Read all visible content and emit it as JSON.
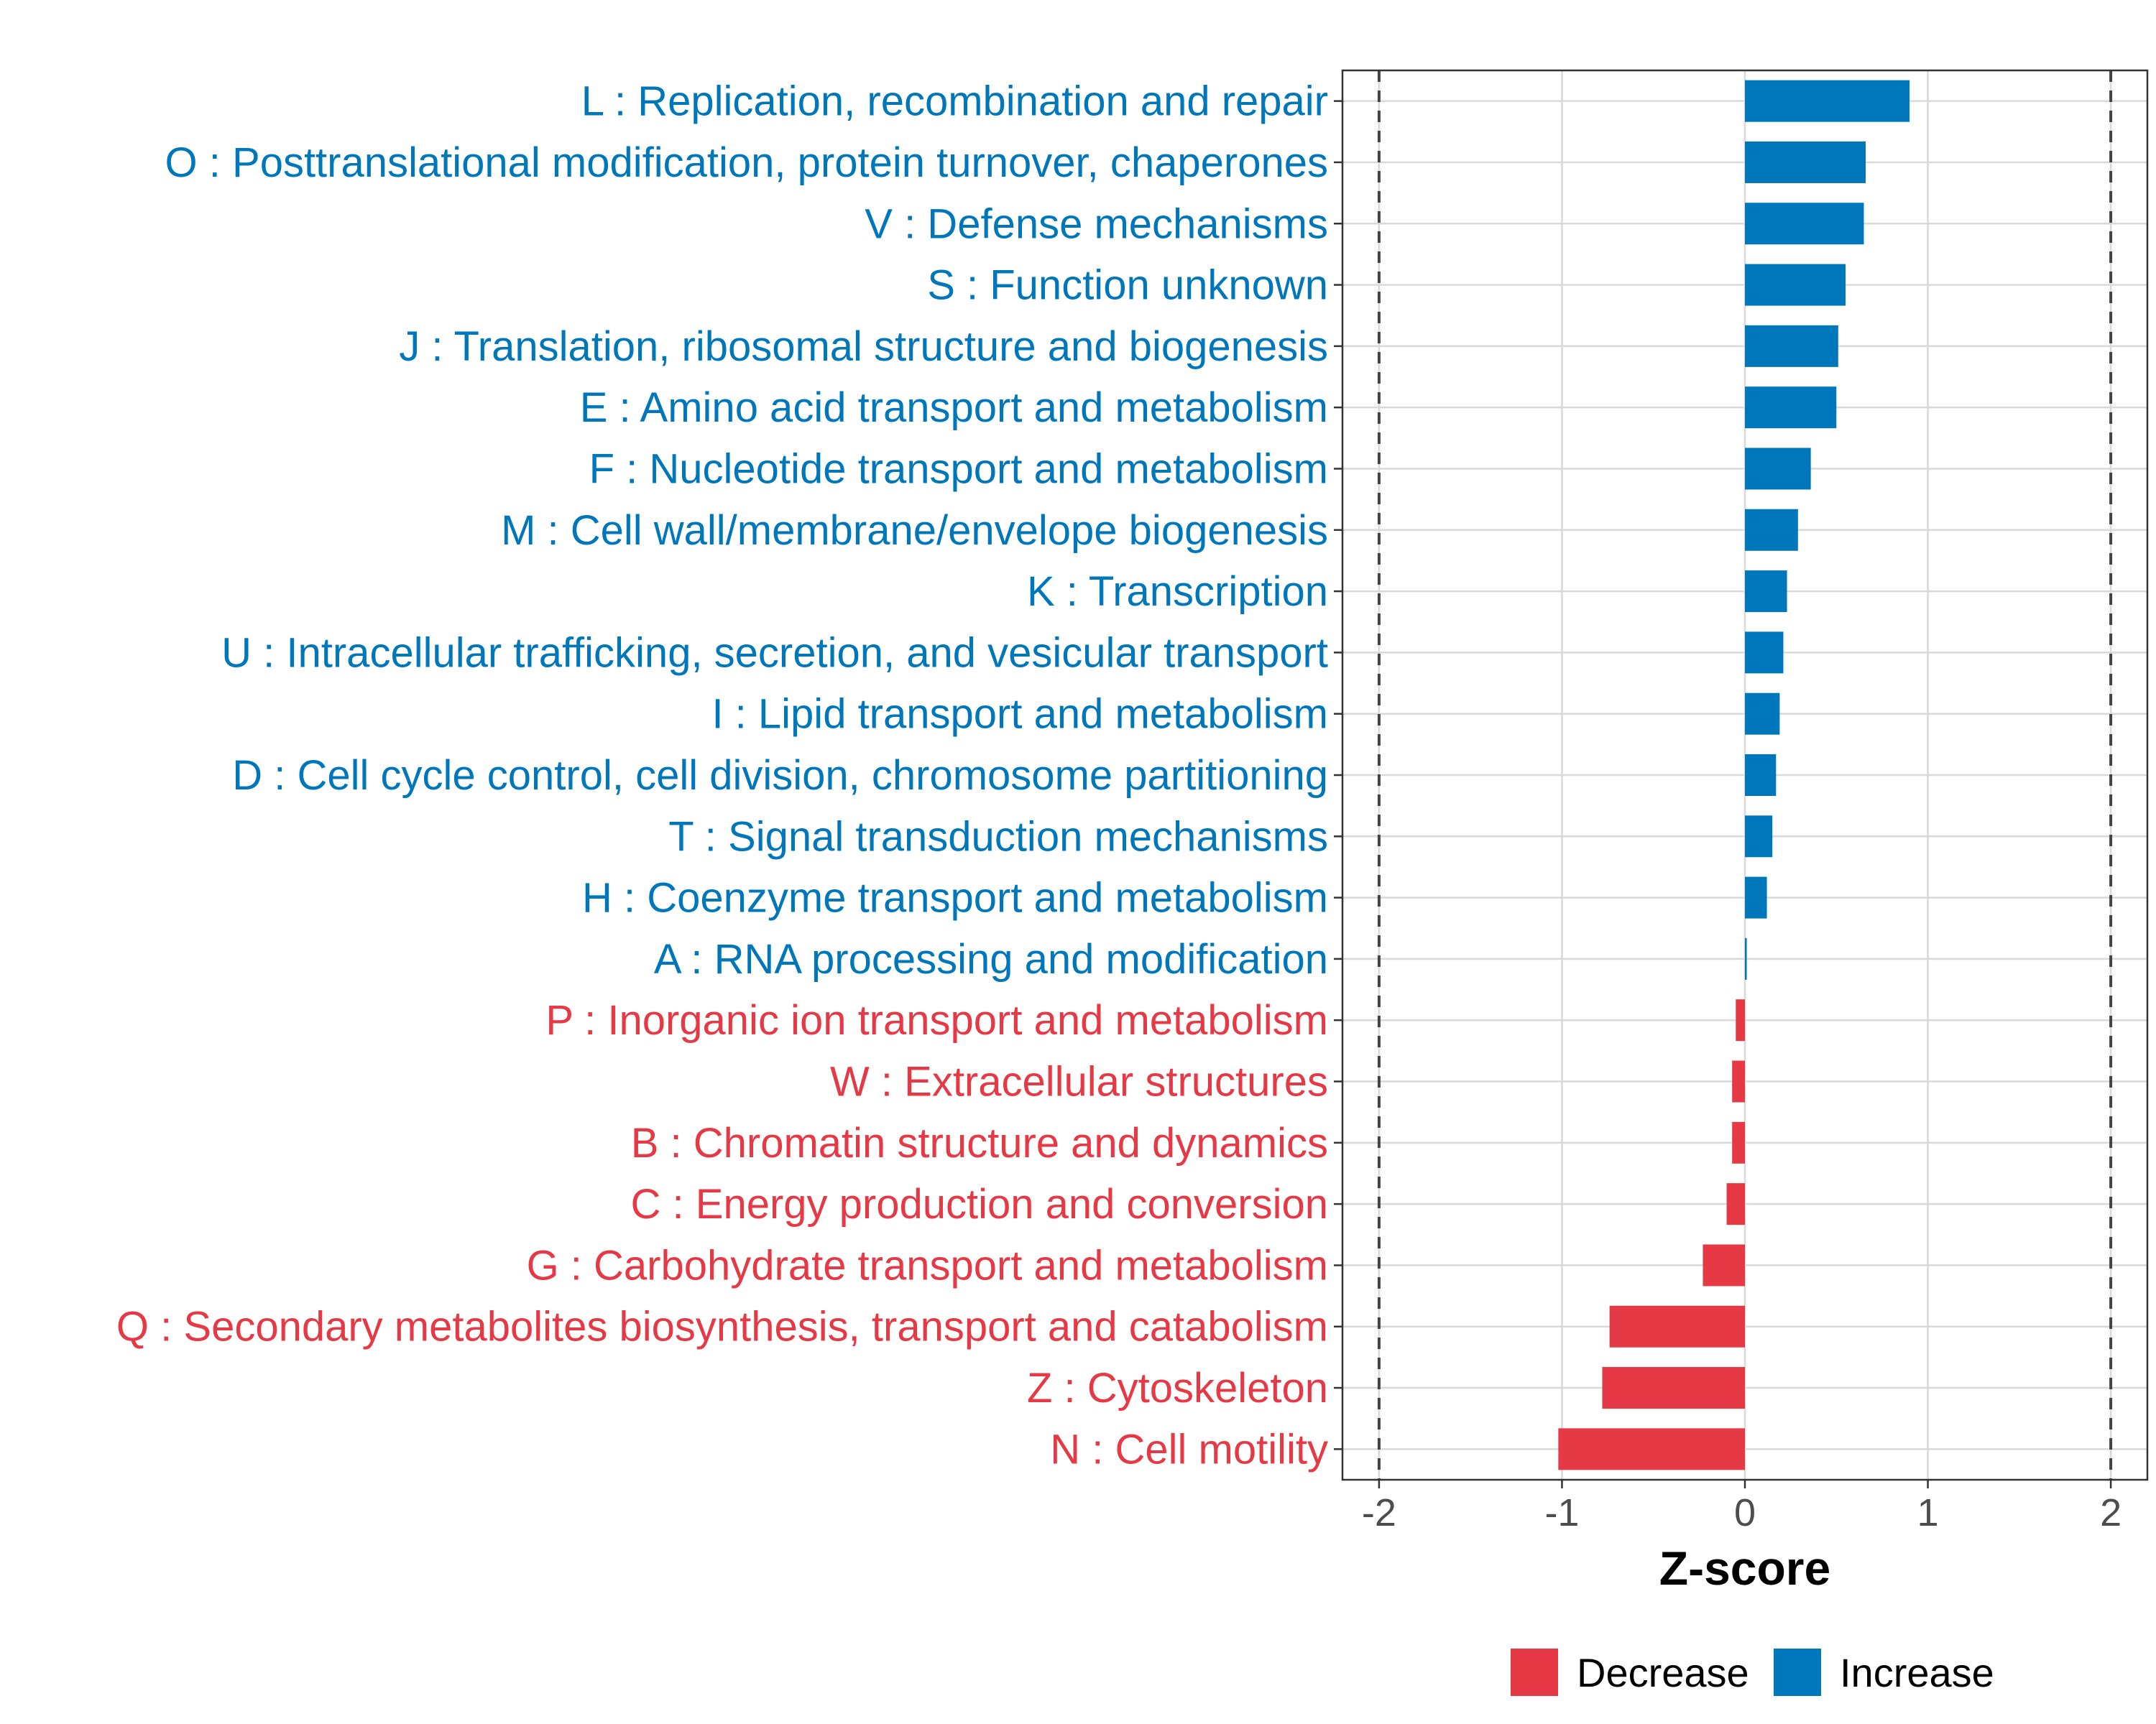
{
  "chart_data": {
    "type": "bar",
    "orientation": "horizontal",
    "title": "",
    "xlabel": "Z-score",
    "ylabel": "",
    "xlim": [
      -2.2,
      2.2
    ],
    "xticks": [
      -2,
      -1,
      0,
      1,
      2
    ],
    "xtick_labels": [
      "-2",
      "-1",
      "0",
      "1",
      "2"
    ],
    "reference_lines": [
      -2,
      2
    ],
    "grid": true,
    "categories": [
      "L : Replication, recombination and repair",
      "O : Posttranslational modification, protein turnover, chaperones",
      "V : Defense mechanisms",
      "S : Function unknown",
      "J : Translation, ribosomal structure and biogenesis",
      "E : Amino acid transport and metabolism",
      "F : Nucleotide transport and metabolism",
      "M : Cell wall/membrane/envelope biogenesis",
      "K : Transcription",
      "U : Intracellular trafficking, secretion, and vesicular transport",
      "I : Lipid transport and metabolism",
      "D : Cell cycle control, cell division, chromosome partitioning",
      "T : Signal transduction mechanisms",
      "H : Coenzyme transport and metabolism",
      "A : RNA processing and modification",
      "P : Inorganic ion transport and metabolism",
      "W : Extracellular structures",
      "B : Chromatin structure and dynamics",
      "C : Energy production and conversion",
      "G : Carbohydrate transport and metabolism",
      "Q : Secondary metabolites biosynthesis, transport and catabolism",
      "Z : Cytoskeleton",
      "N : Cell motility"
    ],
    "values": [
      0.9,
      0.66,
      0.65,
      0.55,
      0.51,
      0.5,
      0.36,
      0.29,
      0.23,
      0.21,
      0.19,
      0.17,
      0.15,
      0.12,
      0.01,
      -0.05,
      -0.07,
      -0.07,
      -0.1,
      -0.23,
      -0.74,
      -0.78,
      -1.02
    ],
    "groups": [
      "Increase",
      "Increase",
      "Increase",
      "Increase",
      "Increase",
      "Increase",
      "Increase",
      "Increase",
      "Increase",
      "Increase",
      "Increase",
      "Increase",
      "Increase",
      "Increase",
      "Increase",
      "Decrease",
      "Decrease",
      "Decrease",
      "Decrease",
      "Decrease",
      "Decrease",
      "Decrease",
      "Decrease"
    ],
    "colors": {
      "Increase": "#0077BB",
      "Decrease": "#E63946",
      "grid": "#D9D9D9",
      "panel_border": "#333333",
      "ref_line": "#444444",
      "tick_text": "#4d4d4d"
    },
    "legend": {
      "position": "bottom",
      "entries": [
        {
          "label": "Decrease",
          "color": "#E63946"
        },
        {
          "label": "Increase",
          "color": "#0077BB"
        }
      ]
    }
  }
}
